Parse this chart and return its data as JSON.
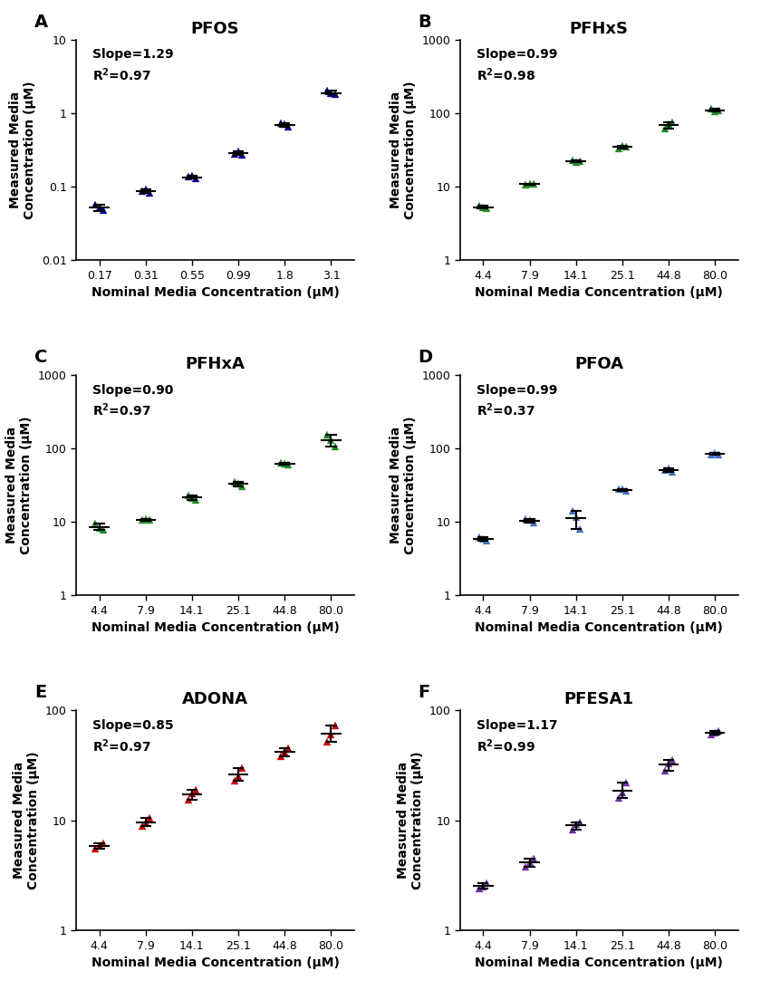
{
  "panels": [
    {
      "label": "A",
      "title": "PFOS",
      "color": "#00008B",
      "slope_text": "Slope=1.29",
      "r2_text": "R²=0.97",
      "xticklabels": [
        "0.17",
        "0.31",
        "0.55",
        "0.99",
        "1.8",
        "3.1"
      ],
      "x_positions": [
        1,
        2,
        3,
        4,
        5,
        6
      ],
      "ylim": [
        0.01,
        10
      ],
      "yticks": [
        0.01,
        0.1,
        1,
        10
      ],
      "yticklabels": [
        "0.01",
        "0.1",
        "1",
        "10"
      ],
      "xlabel": "Nominal Media Concentration (μM)",
      "ylabel": "Measured Media\nConcentration (μM)",
      "data_points": [
        [
          0.057,
          0.052,
          0.048
        ],
        [
          0.088,
          0.092,
          0.083
        ],
        [
          0.135,
          0.14,
          0.128
        ],
        [
          0.28,
          0.3,
          0.27
        ],
        [
          0.72,
          0.7,
          0.65
        ],
        [
          2.0,
          1.85,
          1.8
        ]
      ],
      "mean_vals": [
        0.052,
        0.088,
        0.134,
        0.283,
        0.69,
        1.88
      ],
      "err_lo": [
        0.006,
        0.005,
        0.006,
        0.013,
        0.04,
        0.08
      ],
      "err_hi": [
        0.005,
        0.004,
        0.006,
        0.017,
        0.03,
        0.12
      ]
    },
    {
      "label": "B",
      "title": "PFHxS",
      "color": "#228B22",
      "slope_text": "Slope=0.99",
      "r2_text": "R²=0.98",
      "xticklabels": [
        "4.4",
        "7.9",
        "14.1",
        "25.1",
        "44.8",
        "80.0"
      ],
      "x_positions": [
        1,
        2,
        3,
        4,
        5,
        6
      ],
      "ylim": [
        1,
        1000
      ],
      "yticks": [
        1,
        10,
        100,
        1000
      ],
      "yticklabels": [
        "1",
        "10",
        "100",
        "1000"
      ],
      "xlabel": "Nominal Media Concentration (μM)",
      "ylabel": "Measured Media\nConcentration (μM)",
      "data_points": [
        [
          5.5,
          5.2,
          5.0
        ],
        [
          10.5,
          11.0,
          10.8
        ],
        [
          22.5,
          21.5,
          22.0
        ],
        [
          33.0,
          36.0,
          34.5
        ],
        [
          62.0,
          70.0,
          75.0
        ],
        [
          115,
          105,
          110
        ]
      ],
      "mean_vals": [
        5.23,
        10.77,
        22.0,
        34.5,
        69.0,
        110.0
      ],
      "err_lo": [
        0.23,
        0.27,
        0.5,
        1.5,
        7.0,
        5.0
      ],
      "err_hi": [
        0.27,
        0.23,
        0.5,
        1.5,
        6.0,
        5.0
      ]
    },
    {
      "label": "C",
      "title": "PFHxA",
      "color": "#228B22",
      "slope_text": "Slope=0.90",
      "r2_text": "R²=0.97",
      "xticklabels": [
        "4.4",
        "7.9",
        "14.1",
        "25.1",
        "44.8",
        "80.0"
      ],
      "x_positions": [
        1,
        2,
        3,
        4,
        5,
        6
      ],
      "ylim": [
        1,
        1000
      ],
      "yticks": [
        1,
        10,
        100,
        1000
      ],
      "yticklabels": [
        "1",
        "10",
        "100",
        "1000"
      ],
      "xlabel": "Nominal Media Concentration (μM)",
      "ylabel": "Measured Media\nConcentration (μM)",
      "data_points": [
        [
          9.5,
          8.2,
          7.8
        ],
        [
          10.5,
          11.0,
          10.5
        ],
        [
          23.0,
          21.0,
          20.0
        ],
        [
          35.0,
          33.0,
          30.0
        ],
        [
          64.0,
          62.0,
          60.0
        ],
        [
          155,
          130,
          105
        ]
      ],
      "mean_vals": [
        8.5,
        10.7,
        21.3,
        32.7,
        62.0,
        130.0
      ],
      "err_lo": [
        0.7,
        0.3,
        1.3,
        2.7,
        2.0,
        25.0
      ],
      "err_hi": [
        1.0,
        0.3,
        1.7,
        2.3,
        2.0,
        25.0
      ]
    },
    {
      "label": "D",
      "title": "PFOA",
      "color": "#4472C4",
      "slope_text": "Slope=0.99",
      "r2_text": "R²=0.37",
      "xticklabels": [
        "4.4",
        "7.9",
        "14.1",
        "25.1",
        "44.8",
        "80.0"
      ],
      "x_positions": [
        1,
        2,
        3,
        4,
        5,
        6
      ],
      "ylim": [
        1,
        1000
      ],
      "yticks": [
        1,
        10,
        100,
        1000
      ],
      "yticklabels": [
        "1",
        "10",
        "100",
        "1000"
      ],
      "xlabel": "Nominal Media Concentration (μM)",
      "ylabel": "Measured Media\nConcentration (μM)",
      "data_points": [
        [
          6.2,
          5.8,
          5.5
        ],
        [
          11.0,
          10.5,
          9.8
        ],
        [
          14.0,
          11.5,
          8.0
        ],
        [
          28.0,
          27.5,
          26.5
        ],
        [
          50.0,
          53.0,
          48.0
        ],
        [
          82.0,
          87.0,
          83.0
        ]
      ],
      "mean_vals": [
        5.83,
        10.43,
        11.17,
        27.33,
        50.3,
        84.0
      ],
      "err_lo": [
        0.33,
        0.6,
        3.17,
        0.83,
        2.3,
        2.0
      ],
      "err_hi": [
        0.37,
        0.57,
        2.83,
        0.67,
        2.7,
        3.0
      ]
    },
    {
      "label": "E",
      "title": "ADONA",
      "color": "#CC0000",
      "slope_text": "Slope=0.85",
      "r2_text": "R²=0.97",
      "xticklabels": [
        "4.4",
        "7.9",
        "14.1",
        "25.1",
        "44.8",
        "80.0"
      ],
      "x_positions": [
        1,
        2,
        3,
        4,
        5,
        6
      ],
      "ylim": [
        1,
        100
      ],
      "yticks": [
        1,
        10,
        100
      ],
      "yticklabels": [
        "1",
        "10",
        "100"
      ],
      "xlabel": "Nominal Media Concentration (μM)",
      "ylabel": "Measured Media\nConcentration (μM)",
      "data_points": [
        [
          5.5,
          5.8,
          6.2
        ],
        [
          8.8,
          9.5,
          10.5
        ],
        [
          15.5,
          17.5,
          19.0
        ],
        [
          23.0,
          25.0,
          30.0
        ],
        [
          38.0,
          42.0,
          45.0
        ],
        [
          52.0,
          60.0,
          72.0
        ]
      ],
      "mean_vals": [
        5.83,
        9.6,
        17.3,
        26.0,
        41.7,
        61.3
      ],
      "err_lo": [
        0.33,
        0.8,
        1.8,
        3.0,
        3.7,
        9.3
      ],
      "err_hi": [
        0.37,
        0.9,
        1.7,
        4.0,
        3.3,
        10.7
      ]
    },
    {
      "label": "F",
      "title": "PFESA1",
      "color": "#7030A0",
      "slope_text": "Slope=1.17",
      "r2_text": "R²=0.99",
      "xticklabels": [
        "4.4",
        "7.9",
        "14.1",
        "25.1",
        "44.8",
        "80.0"
      ],
      "x_positions": [
        1,
        2,
        3,
        4,
        5,
        6
      ],
      "ylim": [
        1,
        100
      ],
      "yticks": [
        1,
        10,
        100
      ],
      "yticklabels": [
        "1",
        "10",
        "100"
      ],
      "xlabel": "Nominal Media Concentration (μM)",
      "ylabel": "Measured Media\nConcentration (μM)",
      "data_points": [
        [
          2.4,
          2.5,
          2.7
        ],
        [
          3.8,
          4.2,
          4.5
        ],
        [
          8.3,
          9.2,
          9.5
        ],
        [
          16.0,
          18.0,
          22.0
        ],
        [
          28.0,
          33.0,
          35.0
        ],
        [
          60.0,
          62.0,
          65.0
        ]
      ],
      "mean_vals": [
        2.53,
        4.17,
        9.0,
        18.7,
        32.0,
        62.3
      ],
      "err_lo": [
        0.13,
        0.37,
        0.7,
        2.7,
        4.0,
        2.3
      ],
      "err_hi": [
        0.17,
        0.33,
        0.5,
        3.3,
        3.0,
        2.7
      ]
    }
  ],
  "background_color": "#ffffff",
  "title_fontsize": 13,
  "label_fontsize": 10,
  "tick_fontsize": 9,
  "annotation_fontsize": 10
}
